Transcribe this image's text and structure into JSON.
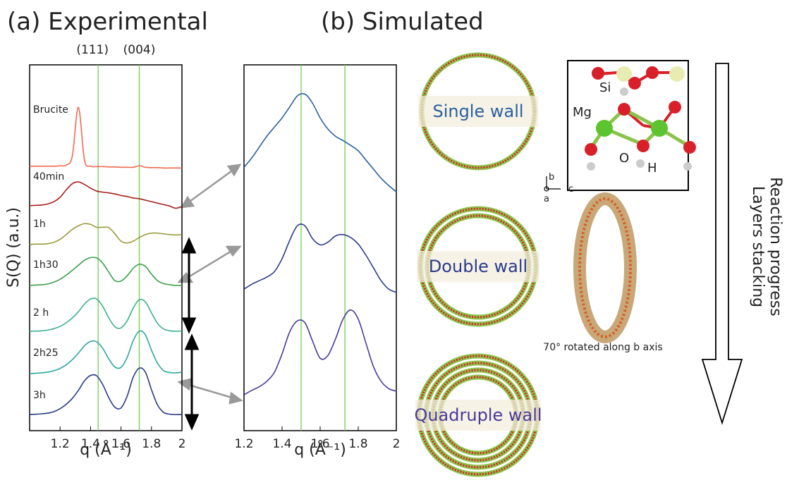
{
  "panel_titles": [
    "(a) Experimental",
    "(b) Simulated"
  ],
  "chart_data": [
    {
      "type": "line",
      "y_label": "S(Q) (a.u.)",
      "x_label": "q (Å⁻¹)",
      "xlim": [
        1.0,
        2.0
      ],
      "xticks": [
        1.2,
        1.4,
        1.6,
        1.8,
        {
          "value": 2,
          "label": "2"
        }
      ],
      "ylim": [
        0,
        100
      ],
      "vlines": [
        {
          "value": 1.45,
          "label": "(111)",
          "color": "#6fcf4f"
        },
        {
          "value": 1.72,
          "label": "(004)",
          "color": "#6fcf4f"
        }
      ],
      "x": [
        1.0,
        1.04,
        1.08,
        1.12,
        1.16,
        1.2,
        1.24,
        1.28,
        1.32,
        1.36,
        1.4,
        1.44,
        1.48,
        1.52,
        1.56,
        1.6,
        1.64,
        1.68,
        1.72,
        1.76,
        1.8,
        1.84,
        1.88,
        1.92,
        1.96,
        2.0
      ],
      "series": [
        {
          "name": "Brucite",
          "color": "#f06a50",
          "values": [
            72.3,
            72.3,
            72.3,
            72.3,
            72.3,
            72.4,
            72.6,
            75,
            88.4,
            74,
            72.3,
            72.2,
            72.2,
            72.1,
            72.1,
            72.0,
            72.0,
            72.0,
            72.4,
            72.0,
            71.9,
            71.9,
            71.8,
            71.8,
            71.8,
            71.8
          ]
        },
        {
          "name": "40min",
          "color": "#a8201c",
          "values": [
            61.5,
            61.6,
            61.7,
            62,
            62.6,
            63.8,
            65.8,
            67.5,
            68,
            67.3,
            66.3,
            65.5,
            65.2,
            65,
            64.7,
            64.3,
            64,
            63.6,
            63.4,
            63,
            62.6,
            62.2,
            61.8,
            61.4,
            60.8,
            61.3
          ]
        },
        {
          "name": "1h",
          "color": "#9a9a3a",
          "values": [
            50.9,
            51,
            51,
            51.1,
            51.5,
            52.3,
            53.6,
            55,
            56,
            56.6,
            56.4,
            55.6,
            55.6,
            55.5,
            53.8,
            51.8,
            51.3,
            51.8,
            52.8,
            53.6,
            54,
            54,
            53.8,
            53.6,
            53.5,
            53.6
          ]
        },
        {
          "name": "1h30",
          "color": "#3aa04a",
          "values": [
            39.7,
            39.8,
            39.9,
            40.1,
            40.6,
            41.4,
            42.5,
            43.8,
            45.2,
            46.6,
            47.3,
            47.2,
            45.8,
            43.3,
            41,
            40.9,
            42.3,
            44.4,
            45.5,
            44.9,
            42.8,
            41,
            40.2,
            39.9,
            39.7,
            39.7
          ]
        },
        {
          "name": "2 h",
          "color": "#3db088",
          "values": [
            27.2,
            27.2,
            27.3,
            27.5,
            27.9,
            28.5,
            29.5,
            30.8,
            32.5,
            34.6,
            36,
            36,
            34,
            30.8,
            28.4,
            28.1,
            30,
            33.5,
            35.8,
            35.2,
            32.2,
            29.3,
            27.8,
            27.3,
            27.2,
            27.2
          ]
        },
        {
          "name": "2h25",
          "color": "#2aa5a0",
          "values": [
            15.6,
            15.7,
            15.8,
            16,
            16.4,
            17,
            18,
            19.4,
            21.2,
            23.2,
            24.4,
            24.3,
            22.5,
            19.6,
            17.4,
            17.3,
            20,
            24.6,
            27.2,
            26.2,
            22,
            18.4,
            16.4,
            15.9,
            15.8,
            16
          ]
        },
        {
          "name": "3h",
          "color": "#2a3a8a",
          "values": [
            4.4,
            4.5,
            4.6,
            4.8,
            5.2,
            6,
            7.2,
            8.8,
            11,
            13.6,
            15.1,
            15,
            12.6,
            9,
            6.4,
            6.2,
            9.4,
            14.6,
            17.1,
            16,
            11.2,
            7,
            5,
            4.5,
            4.4,
            4.4
          ]
        }
      ]
    },
    {
      "type": "line",
      "x_label": "q (Å⁻¹)",
      "xlim": [
        1.2,
        2.0
      ],
      "xticks": [
        1.2,
        1.4,
        1.6,
        1.8,
        {
          "value": 2,
          "label": "2"
        }
      ],
      "ylim": [
        0,
        100
      ],
      "vlines": [
        {
          "value": 1.5,
          "color": "#6fcf4f"
        },
        {
          "value": 1.73,
          "color": "#6fcf4f"
        }
      ],
      "x": [
        1.2,
        1.24,
        1.28,
        1.32,
        1.36,
        1.4,
        1.44,
        1.48,
        1.52,
        1.56,
        1.6,
        1.64,
        1.68,
        1.72,
        1.76,
        1.8,
        1.84,
        1.88,
        1.92,
        1.96,
        2.0
      ],
      "series": [
        {
          "color": "#2a5fa0",
          "values": [
            72,
            74.5,
            77.5,
            80.5,
            83,
            85.5,
            88.5,
            91.5,
            92,
            89.5,
            85.5,
            82.5,
            80.5,
            79.3,
            78,
            76.5,
            74,
            71.5,
            69,
            67,
            65.3
          ]
        },
        {
          "color": "#2b3a8c",
          "values": [
            38.7,
            40,
            41,
            42,
            43.5,
            47,
            52,
            56,
            56,
            52.5,
            50.8,
            51.5,
            53.2,
            53.6,
            52.8,
            51,
            48,
            44.5,
            41,
            38.7,
            37.8
          ]
        },
        {
          "color": "#4b3a9a",
          "values": [
            9.8,
            11,
            12,
            13.5,
            16,
            21,
            27,
            30,
            29.5,
            24.5,
            19.8,
            20.5,
            25,
            30.5,
            33,
            30.5,
            24,
            17.5,
            13.5,
            11.5,
            10.8
          ]
        }
      ]
    }
  ],
  "structures": {
    "single": "Single wall",
    "double": "Double wall",
    "quadruple": "Quadruple wall",
    "rotated": "70° rotated along b axis"
  },
  "atoms": {
    "si": "Si",
    "mg": "Mg",
    "o": "O",
    "h": "H"
  },
  "axes": {
    "b": "b",
    "c": "c",
    "a": "a"
  },
  "side_labels": [
    "Reaction progress",
    "Layers stacking"
  ]
}
